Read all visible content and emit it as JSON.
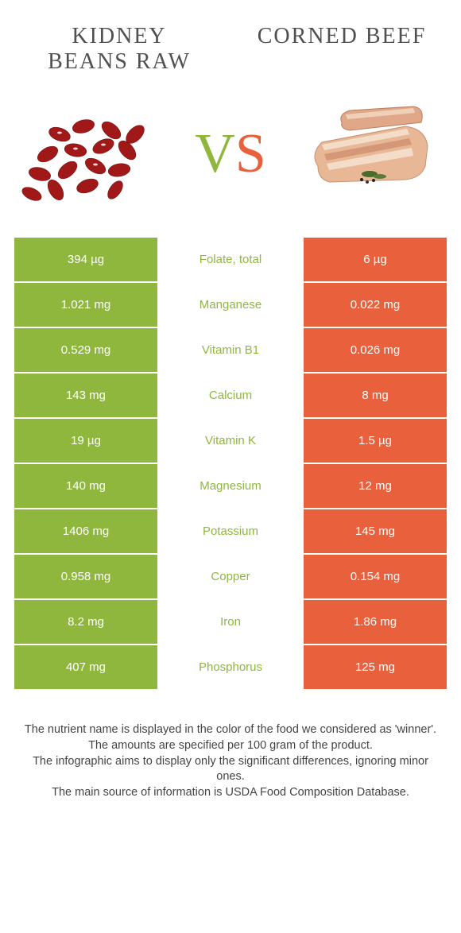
{
  "colors": {
    "green": "#8fb73e",
    "orange": "#e8603c",
    "mid_green": "#8fb73e",
    "mid_orange": "#e8603c"
  },
  "left_title": "KIDNEY BEANS RAW",
  "right_title": "CORNED BEEF",
  "vs": {
    "v": "V",
    "s": "S"
  },
  "rows": [
    {
      "left": "394 µg",
      "mid": "Folate, total",
      "right": "6 µg",
      "winner": "left"
    },
    {
      "left": "1.021 mg",
      "mid": "Manganese",
      "right": "0.022 mg",
      "winner": "left"
    },
    {
      "left": "0.529 mg",
      "mid": "Vitamin B1",
      "right": "0.026 mg",
      "winner": "left"
    },
    {
      "left": "143 mg",
      "mid": "Calcium",
      "right": "8 mg",
      "winner": "left"
    },
    {
      "left": "19 µg",
      "mid": "Vitamin K",
      "right": "1.5 µg",
      "winner": "left"
    },
    {
      "left": "140 mg",
      "mid": "Magnesium",
      "right": "12 mg",
      "winner": "left"
    },
    {
      "left": "1406 mg",
      "mid": "Potassium",
      "right": "145 mg",
      "winner": "left"
    },
    {
      "left": "0.958 mg",
      "mid": "Copper",
      "right": "0.154 mg",
      "winner": "left"
    },
    {
      "left": "8.2 mg",
      "mid": "Iron",
      "right": "1.86 mg",
      "winner": "left"
    },
    {
      "left": "407 mg",
      "mid": "Phosphorus",
      "right": "125 mg",
      "winner": "left"
    }
  ],
  "footer_lines": [
    "The nutrient name is displayed in the color of the food we considered as 'winner'.",
    "The amounts are specified per 100 gram of the product.",
    "The infographic aims to display only the significant differences, ignoring minor ones.",
    "The main source of information is USDA Food Composition Database."
  ]
}
